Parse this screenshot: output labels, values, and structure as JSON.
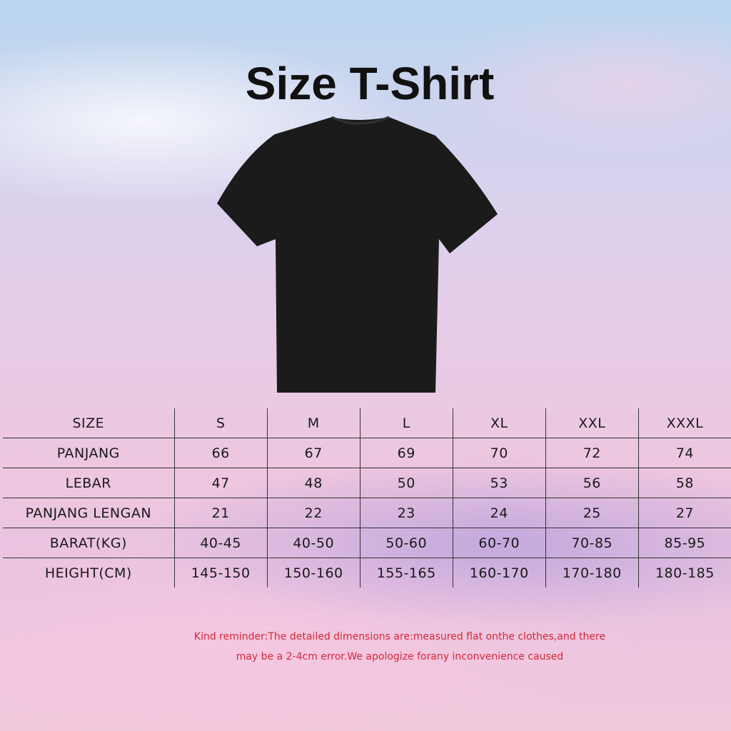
{
  "title": "Size T-Shirt",
  "table": {
    "header": [
      "SIZE",
      "S",
      "M",
      "L",
      "XL",
      "XXL",
      "XXXL"
    ],
    "rows": [
      [
        "PANJANG",
        "66",
        "67",
        "69",
        "70",
        "72",
        "74"
      ],
      [
        "LEBAR",
        "47",
        "48",
        "50",
        "53",
        "56",
        "58"
      ],
      [
        "PANJANG LENGAN",
        "21",
        "22",
        "23",
        "24",
        "25",
        "27"
      ],
      [
        "BARAT(KG)",
        "40-45",
        "40-50",
        "50-60",
        "60-70",
        "70-85",
        "85-95"
      ],
      [
        "HEIGHT(CM)",
        "145-150",
        "150-160",
        "155-165",
        "160-170",
        "170-180",
        "180-185"
      ]
    ]
  },
  "note": {
    "line1": "Kind reminder:The detailed dimensions are:measured flat onthe clothes,and there",
    "line2": "may be a 2-4cm error.We apologize forany inconvenience caused"
  },
  "colors": {
    "shirt": "#1b1b1b",
    "note": "#d4283a"
  }
}
